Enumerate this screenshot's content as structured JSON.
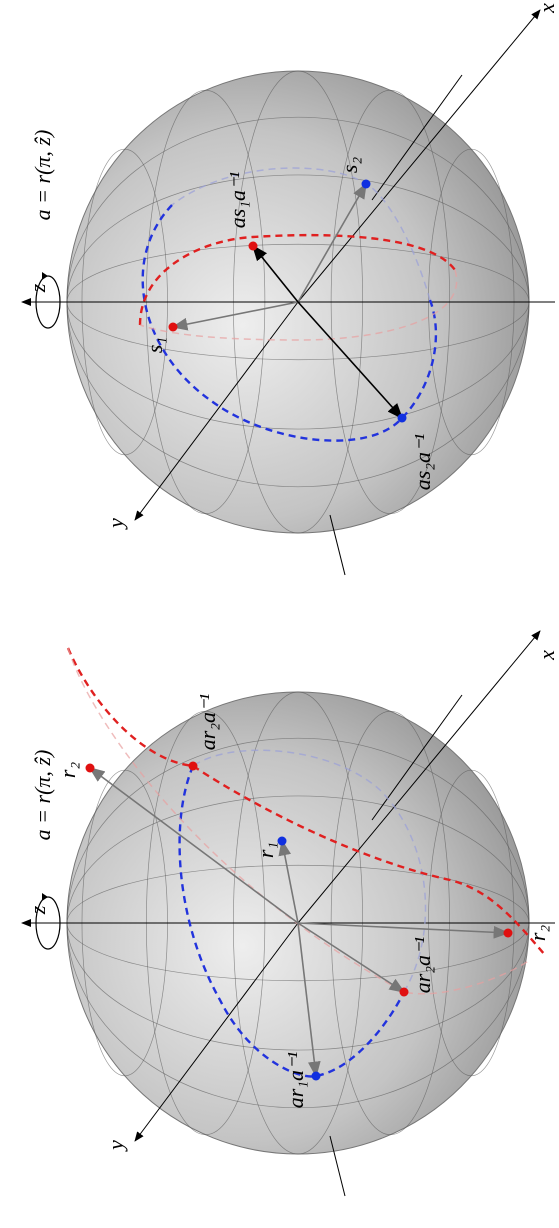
{
  "panels": [
    {
      "axes": {
        "x": "x",
        "y": "y",
        "z": "z"
      },
      "rotation": "a = r(π, ẑ)",
      "points": [
        {
          "label": "s₁",
          "color": "red"
        },
        {
          "label": "s₂",
          "color": "blue"
        },
        {
          "label": "as₁a⁻¹",
          "color": "red"
        },
        {
          "label": "as₂a⁻¹",
          "color": "blue"
        }
      ]
    },
    {
      "axes": {
        "x": "x",
        "y": "y",
        "z": "z"
      },
      "rotation": "a = r(π, ẑ)",
      "points": [
        {
          "label": "r₂",
          "color": "red"
        },
        {
          "label": "ar₂a⁻¹",
          "color": "red"
        },
        {
          "label": "r₁",
          "color": "blue"
        },
        {
          "label": "r₂",
          "color": "red"
        },
        {
          "label": "ar₂a⁻¹",
          "color": "red"
        },
        {
          "label": "ar₁a⁻¹",
          "color": "blue"
        }
      ]
    }
  ]
}
